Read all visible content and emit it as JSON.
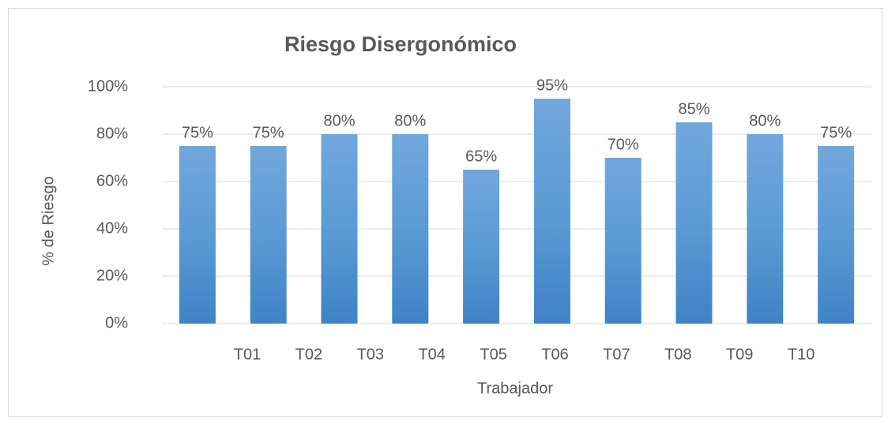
{
  "chart_data": {
    "type": "bar",
    "title": "Riesgo Disergonómico",
    "x_label": "Trabajador",
    "y_label": "% de Riesgo",
    "categories": [
      "T01",
      "T02",
      "T03",
      "T04",
      "T05",
      "T06",
      "T07",
      "T08",
      "T09",
      "T10"
    ],
    "values": [
      75,
      75,
      80,
      80,
      65,
      95,
      70,
      85,
      80,
      75
    ],
    "value_labels": [
      "75%",
      "75%",
      "80%",
      "80%",
      "65%",
      "95%",
      "70%",
      "85%",
      "80%",
      "75%"
    ],
    "color": "#5b9bd5",
    "ylim": [
      0,
      100
    ],
    "yticks": [
      {
        "value": 0,
        "label": "0%"
      },
      {
        "value": 20,
        "label": "20%"
      },
      {
        "value": 40,
        "label": "40%"
      },
      {
        "value": 60,
        "label": "60%"
      },
      {
        "value": 80,
        "label": "80%"
      },
      {
        "value": 100,
        "label": "100%"
      }
    ],
    "grid": true
  }
}
